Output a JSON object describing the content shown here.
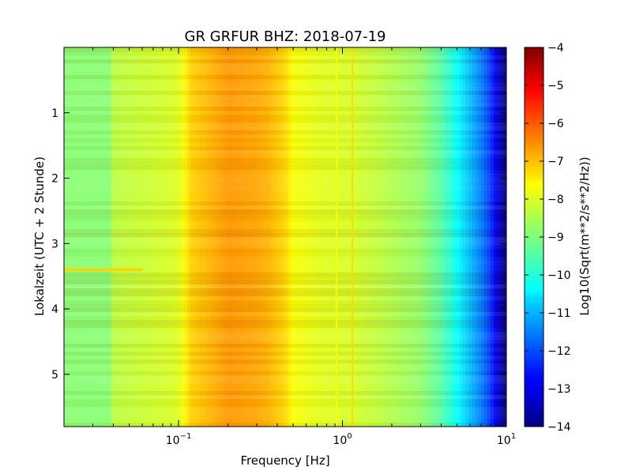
{
  "chart_data": {
    "type": "heatmap",
    "title": "GR GRFUR BHZ: 2018-07-19",
    "xlabel": "Frequency [Hz]",
    "ylabel": "Lokalzeit (UTC + 2 Stunde)",
    "colorbar_label": "Log10(Sqrt(m**2/s**2/Hz))",
    "x_scale": "log",
    "xlim": [
      0.02,
      10
    ],
    "ylim": [
      0,
      5.8
    ],
    "y_inverted": true,
    "x_ticks": [
      {
        "value": 0.1,
        "base": "10",
        "exp": "−1"
      },
      {
        "value": 1,
        "base": "10",
        "exp": "0"
      },
      {
        "value": 10,
        "base": "10",
        "exp": "1"
      }
    ],
    "y_ticks": [
      {
        "value": 1,
        "label": "1"
      },
      {
        "value": 2,
        "label": "2"
      },
      {
        "value": 3,
        "label": "3"
      },
      {
        "value": 4,
        "label": "4"
      },
      {
        "value": 5,
        "label": "5"
      }
    ],
    "colorbar": {
      "colormap": "jet",
      "range": [
        -14,
        -4
      ],
      "ticks": [
        {
          "value": -4,
          "label": "−4"
        },
        {
          "value": -5,
          "label": "−5"
        },
        {
          "value": -6,
          "label": "−6"
        },
        {
          "value": -7,
          "label": "−7"
        },
        {
          "value": -8,
          "label": "−8"
        },
        {
          "value": -9,
          "label": "−9"
        },
        {
          "value": -10,
          "label": "−10"
        },
        {
          "value": -11,
          "label": "−11"
        },
        {
          "value": -12,
          "label": "−12"
        },
        {
          "value": -13,
          "label": "−13"
        },
        {
          "value": -14,
          "label": "−14"
        }
      ]
    },
    "spectrum_profile": {
      "frequencies": [
        0.02,
        0.038,
        0.04,
        0.1,
        0.12,
        0.16,
        0.2,
        0.28,
        0.35,
        0.45,
        0.5,
        0.7,
        0.9,
        1.15,
        1.5,
        2,
        3,
        4,
        5,
        6,
        7,
        8,
        9,
        10
      ],
      "log_psd": [
        -8.9,
        -8.9,
        -8.4,
        -8.1,
        -7.3,
        -7.0,
        -6.75,
        -6.85,
        -7.0,
        -7.4,
        -7.8,
        -8.0,
        -8.1,
        -8.15,
        -8.3,
        -8.5,
        -8.8,
        -9.4,
        -10.2,
        -10.9,
        -11.5,
        -12.2,
        -13.3,
        -14.0
      ]
    },
    "features": [
      {
        "type": "vertical_line",
        "frequency": 1.15,
        "log_psd": -7.4
      },
      {
        "type": "vertical_line",
        "frequency": 0.92,
        "log_psd": -7.7
      },
      {
        "type": "horizontal_band",
        "time": 3.4,
        "freq_min": 0.02,
        "freq_max": 0.06,
        "log_psd": -7.3
      }
    ]
  }
}
